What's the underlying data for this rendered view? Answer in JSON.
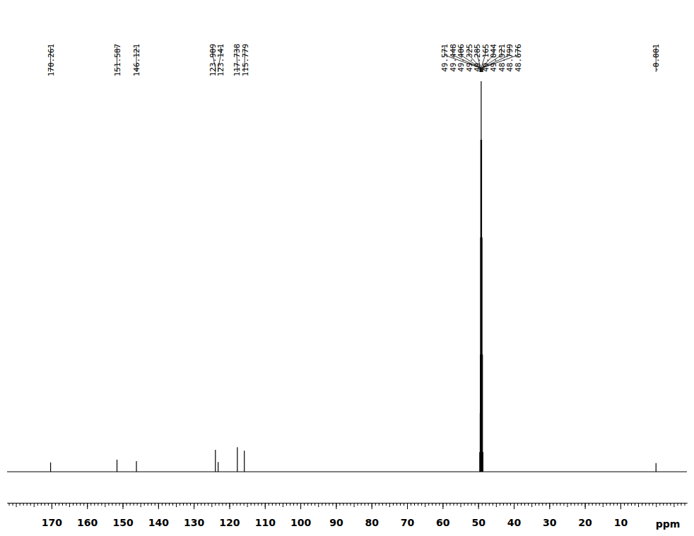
{
  "chart_data": {
    "type": "nmr",
    "x_label": "ppm",
    "x": [
      170.261,
      151.587,
      146.121,
      123.909,
      123.141,
      117.738,
      115.779,
      49.571,
      49.448,
      49.406,
      49.325,
      49.285,
      49.165,
      49.044,
      48.921,
      48.799,
      48.676,
      -0.001
    ],
    "values": [
      2.4,
      3.1,
      2.7,
      5.6,
      2.5,
      6.3,
      5.4,
      5,
      15,
      30,
      60,
      85,
      100,
      85,
      60,
      30,
      5,
      2.2
    ],
    "peak_labels": [
      "170.261",
      "151.587",
      "146.121",
      "123.909",
      "123.141",
      "117.738",
      "115.779",
      "49.571",
      "49.448",
      "49.406",
      "49.325",
      "49.285",
      "49.165",
      "49.044",
      "48.921",
      "48.799",
      "48.676",
      "-0.001"
    ],
    "xlim": [
      182.5,
      -8.7
    ],
    "ylim": [
      0,
      100
    ],
    "xticks": [
      170,
      160,
      150,
      140,
      130,
      120,
      110,
      100,
      90,
      80,
      70,
      60,
      50,
      40,
      30,
      20,
      10
    ],
    "minor_xticks": [
      182,
      181,
      180,
      179,
      178,
      177,
      176,
      175,
      174,
      173,
      172,
      171,
      170,
      169,
      168,
      167,
      166,
      165,
      164,
      163,
      162,
      161,
      160,
      159,
      158,
      157,
      156,
      155,
      154,
      153,
      152,
      151,
      150,
      149,
      148,
      147,
      146,
      145,
      144,
      143,
      142,
      141,
      140,
      139,
      138,
      137,
      136,
      135,
      134,
      133,
      132,
      131,
      130,
      129,
      128,
      127,
      126,
      125,
      124,
      123,
      122,
      121,
      120,
      119,
      118,
      117,
      116,
      115,
      114,
      113,
      112,
      111,
      110,
      109,
      108,
      107,
      106,
      105,
      104,
      103,
      102,
      101,
      100,
      99,
      98,
      97,
      96,
      95,
      94,
      93,
      92,
      91,
      90,
      89,
      88,
      87,
      86,
      85,
      84,
      83,
      82,
      81,
      80,
      79,
      78,
      77,
      76,
      75,
      74,
      73,
      72,
      71,
      70,
      69,
      68,
      67,
      66,
      65,
      64,
      63,
      62,
      61,
      60,
      59,
      58,
      57,
      56,
      55,
      54,
      53,
      52,
      51,
      50,
      49,
      48,
      47,
      46,
      45,
      44,
      43,
      42,
      41,
      40,
      39,
      38,
      37,
      36,
      35,
      34,
      33,
      32,
      31,
      30,
      29,
      28,
      27,
      26,
      25,
      24,
      23,
      22,
      21,
      20,
      19,
      18,
      17,
      16,
      15,
      14,
      13,
      12,
      11,
      10,
      9,
      8,
      7,
      6,
      5,
      4,
      3,
      2,
      1,
      0,
      -1,
      -2,
      -3,
      -4,
      -5,
      -6,
      -7,
      -8
    ],
    "tick_labels": "x",
    "grid": false,
    "color": "#000000"
  }
}
